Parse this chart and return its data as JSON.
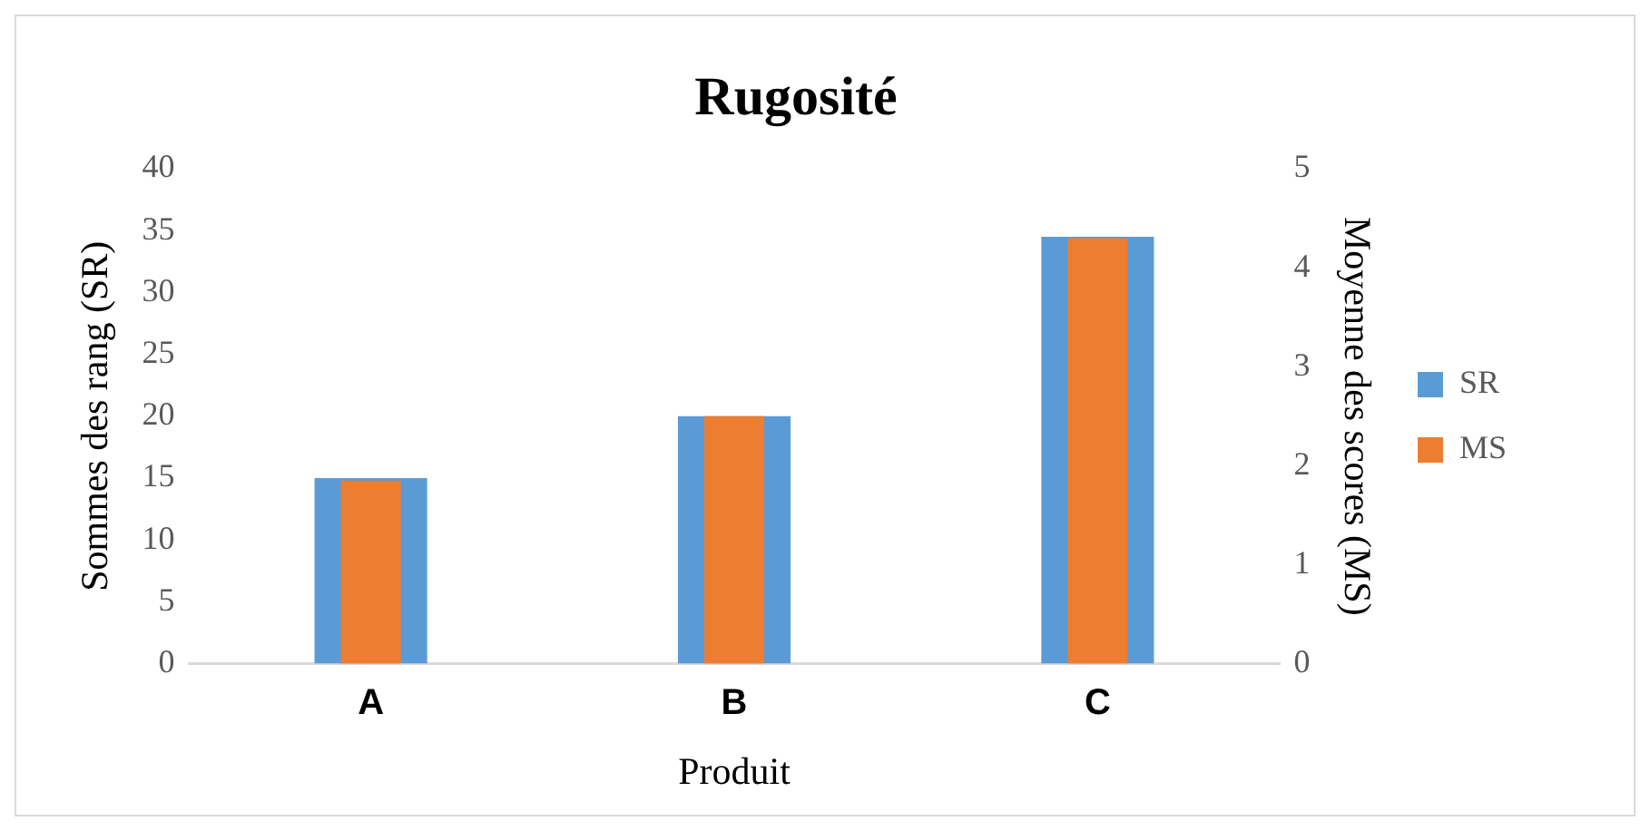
{
  "chart_data": {
    "type": "bar",
    "title": "Rugosité",
    "xlabel": "Produit",
    "ylabel": "Sommes des rang (SR)",
    "y2label": "Moyenne des scores (MS)",
    "categories": [
      "A",
      "B",
      "C"
    ],
    "series": [
      {
        "name": "SR",
        "color": "#5b9bd5",
        "values": [
          15,
          20,
          34.5
        ]
      },
      {
        "name": "MS",
        "color": "#ed7d31",
        "values": [
          1.85,
          2.5,
          4.3
        ],
        "axis": "y2"
      }
    ],
    "ylim": [
      0,
      40
    ],
    "yticks": [
      0,
      5,
      10,
      15,
      20,
      25,
      30,
      35,
      40
    ],
    "y2lim": [
      0,
      5
    ],
    "y2ticks": [
      0,
      1,
      2,
      3,
      4,
      5
    ],
    "grid": false,
    "legend": "right"
  }
}
